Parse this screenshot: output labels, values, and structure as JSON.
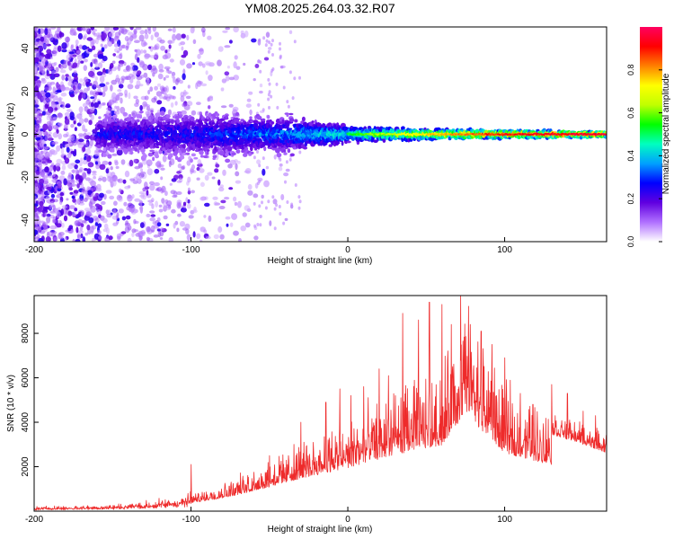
{
  "title": "YM08.2025.264.03.32.R07",
  "chart_data": [
    {
      "type": "heatmap",
      "xlabel": "Height of straight line (km)",
      "ylabel": "Frequency (Hz)",
      "xlim": [
        -200,
        165
      ],
      "ylim": [
        -50,
        50
      ],
      "x_ticks": [
        -200,
        -100,
        0,
        100
      ],
      "y_ticks": [
        -40,
        -20,
        0,
        20,
        40
      ],
      "x_tick_labels": [
        "-200",
        "-100",
        "0",
        "100"
      ],
      "y_tick_labels": [
        "-40",
        "-20",
        "0",
        "20",
        "40"
      ],
      "grid": false,
      "colorbar": {
        "label": "Normalized spectral amplitude",
        "range": [
          0,
          1
        ],
        "ticks": [
          0.0,
          0.2,
          0.4,
          0.6,
          0.8
        ],
        "tick_labels": [
          "0.0",
          "0.2",
          "0.4",
          "0.6",
          "0.8"
        ],
        "colormap": [
          "#ffffff",
          "#b070ff",
          "#6000e0",
          "#0000ff",
          "#00a0ff",
          "#00ffc0",
          "#00ff00",
          "#c0ff00",
          "#ffff00",
          "#ff8000",
          "#ff0000",
          "#ff0060"
        ]
      },
      "description_points": {
        "noise_region": [
          -200,
          -130
        ],
        "signal_onset_km": -160,
        "band_halfwidth_hz": [
          [
            -160,
            6
          ],
          [
            -100,
            8
          ],
          [
            -40,
            6
          ],
          [
            0,
            3
          ],
          [
            50,
            2
          ],
          [
            100,
            1.5
          ],
          [
            165,
            1
          ]
        ],
        "peak_normalized_amplitude": [
          [
            -160,
            0.3
          ],
          [
            -100,
            0.3
          ],
          [
            -40,
            0.4
          ],
          [
            0,
            0.55
          ],
          [
            40,
            0.75
          ],
          [
            100,
            0.95
          ],
          [
            165,
            1.0
          ]
        ]
      }
    },
    {
      "type": "line",
      "xlabel": "Height of straight line (km)",
      "ylabel": "SNR (10 * v/v)",
      "xlim": [
        -200,
        165
      ],
      "ylim": [
        0,
        9700
      ],
      "x_ticks": [
        -200,
        -100,
        0,
        100
      ],
      "y_ticks": [
        2000,
        4000,
        6000,
        8000
      ],
      "x_tick_labels": [
        "-200",
        "-100",
        "0",
        "100"
      ],
      "y_tick_labels": [
        "2000",
        "4000",
        "6000",
        "8000"
      ],
      "grid": false,
      "color": "#ee2b2b",
      "envelope": {
        "x": [
          -200,
          -150,
          -120,
          -100,
          -80,
          -60,
          -40,
          -20,
          0,
          20,
          40,
          60,
          75,
          100,
          130,
          150,
          165
        ],
        "y": [
          200,
          300,
          500,
          800,
          1300,
          2000,
          2800,
          3600,
          4300,
          5200,
          6000,
          6600,
          9700,
          5800,
          4600,
          4000,
          3500
        ]
      },
      "peaks": {
        "x": [
          -100,
          -50,
          -30,
          -14,
          -5,
          2,
          10,
          20,
          26,
          35,
          45,
          52,
          60,
          66,
          72,
          78,
          85,
          92,
          100,
          110,
          118,
          130,
          140,
          150,
          158
        ],
        "y": [
          2100,
          2500,
          4000,
          4900,
          5500,
          5200,
          5600,
          6400,
          6100,
          8900,
          8600,
          9400,
          9300,
          8400,
          9700,
          8400,
          8100,
          7500,
          6900,
          5300,
          4800,
          5700,
          5300,
          4500,
          4300
        ]
      }
    }
  ]
}
